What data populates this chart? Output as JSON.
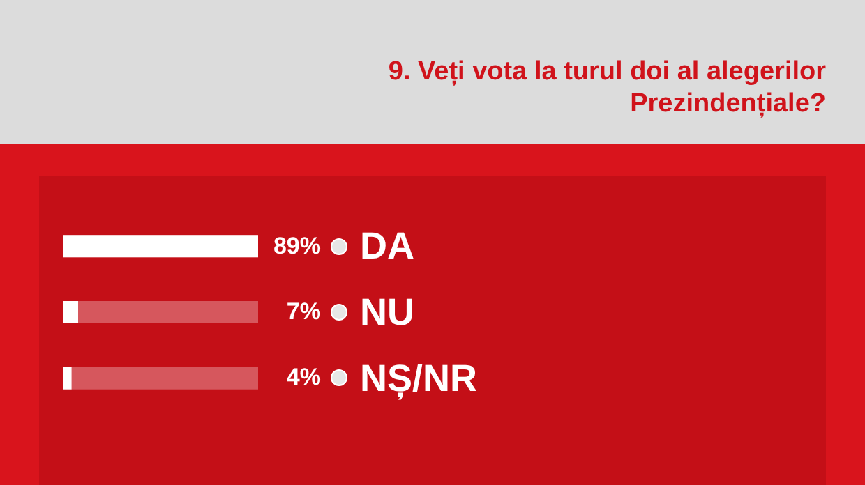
{
  "chart_data": {
    "type": "bar",
    "orientation": "horizontal",
    "title": "9. Veți vota la turul doi al alegerilor Prezindențiale?",
    "categories": [
      "DA",
      "NU",
      "NȘ/NR"
    ],
    "values": [
      89,
      7,
      4
    ],
    "color": "#ffffff",
    "value_labels": [
      "89%",
      "7%",
      "4%"
    ]
  }
}
